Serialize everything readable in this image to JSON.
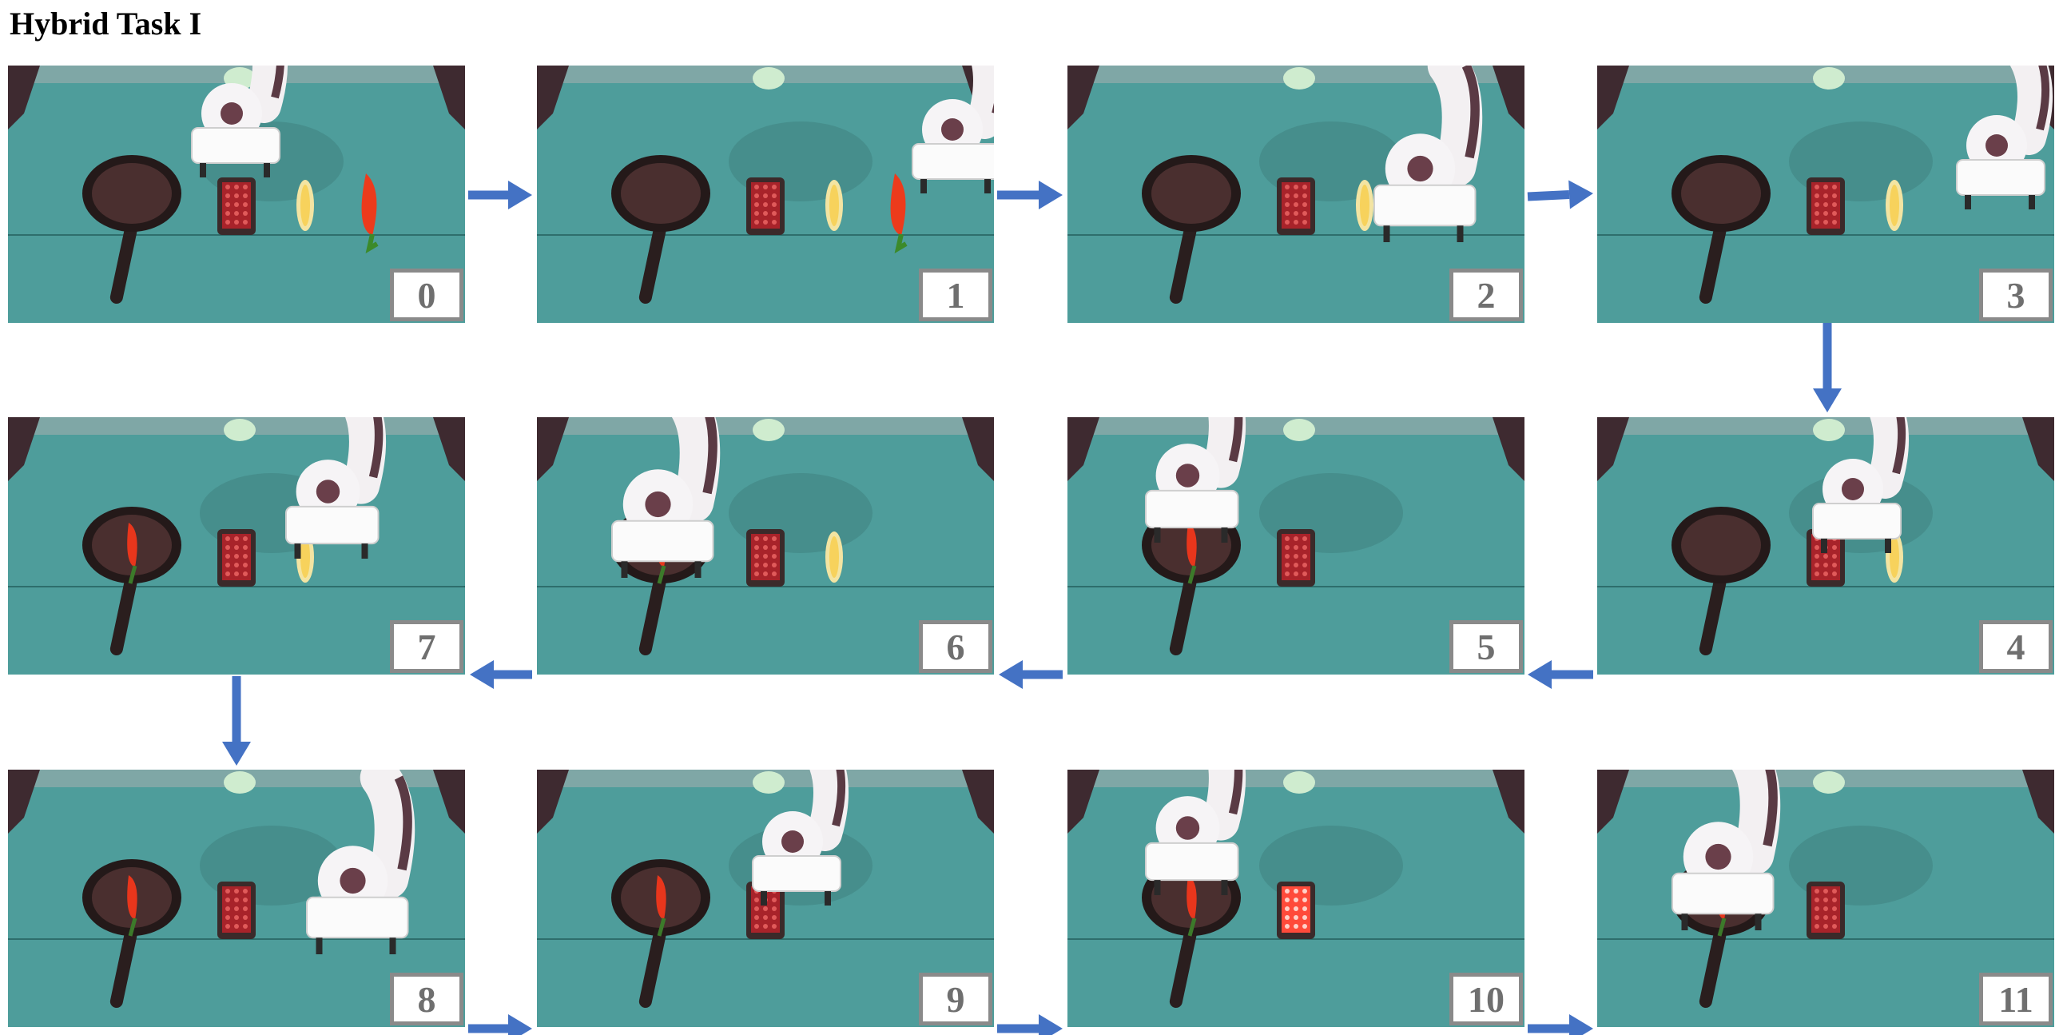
{
  "title": "Hybrid Task I",
  "frames": [
    {
      "label": "0",
      "robot": "top-center",
      "pan": "empty",
      "objects": [
        "basket",
        "corn",
        "pepper"
      ]
    },
    {
      "label": "1",
      "robot": "top-right",
      "pan": "empty",
      "objects": [
        "basket",
        "corn",
        "pepper"
      ]
    },
    {
      "label": "2",
      "robot": "grasp-pepper",
      "pan": "empty",
      "objects": [
        "basket",
        "corn"
      ]
    },
    {
      "label": "3",
      "robot": "lift-pepper",
      "pan": "empty",
      "objects": [
        "basket",
        "corn"
      ]
    },
    {
      "label": "4",
      "robot": "over-basket",
      "pan": "empty",
      "objects": [
        "basket",
        "corn"
      ]
    },
    {
      "label": "5",
      "robot": "over-pan",
      "pan": "pepper",
      "objects": [
        "basket"
      ]
    },
    {
      "label": "6",
      "robot": "placing-pan",
      "pan": "pepper",
      "objects": [
        "basket",
        "corn"
      ]
    },
    {
      "label": "7",
      "robot": "retract",
      "pan": "pepper",
      "objects": [
        "basket",
        "corn"
      ]
    },
    {
      "label": "8",
      "robot": "grasp-corn",
      "pan": "pepper",
      "objects": [
        "basket"
      ]
    },
    {
      "label": "9",
      "robot": "over-basket",
      "pan": "pepper",
      "objects": [
        "basket"
      ]
    },
    {
      "label": "10",
      "robot": "over-pan",
      "pan": "pepper",
      "objects": [
        "basket-lit"
      ]
    },
    {
      "label": "11",
      "robot": "placing-pan",
      "pan": "pepper-corn",
      "objects": [
        "basket"
      ]
    }
  ],
  "colors": {
    "table": "#4e9d9b",
    "arrow": "#4472c4",
    "label_border": "#8a8a8a",
    "label_text": "#6f6f6f"
  }
}
